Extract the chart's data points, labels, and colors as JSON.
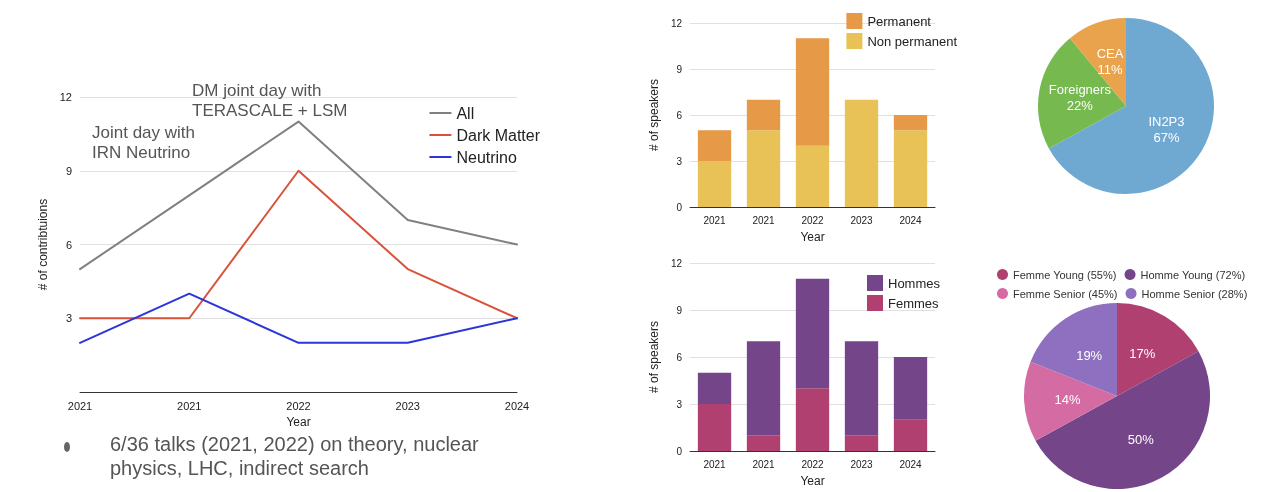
{
  "chart_data": [
    {
      "type": "line",
      "xlabel": "Year",
      "ylabel": "# of contribtuions",
      "categories": [
        "2021",
        "2021",
        "2022",
        "2023",
        "2024"
      ],
      "series": [
        {
          "name": "All",
          "color": "#808080",
          "values": [
            5,
            8,
            11,
            7,
            6
          ]
        },
        {
          "name": "Dark Matter",
          "color": "#d9533a",
          "values": [
            3,
            3,
            9,
            5,
            3
          ]
        },
        {
          "name": "Neutrino",
          "color": "#2b35d9",
          "values": [
            2,
            4,
            2,
            2,
            3
          ]
        }
      ],
      "ylim": [
        0,
        12
      ],
      "yticks": [
        3,
        6,
        9,
        12
      ],
      "grid": "y",
      "legend": "top right",
      "marker": "none",
      "line_style": "solid",
      "annotations": [
        "DM joint day with TERASCALE + LSM",
        "Joint day with IRN Neutrino",
        "6/36 talks (2021, 2022) on theory, nuclear physics, LHC, indirect search"
      ]
    },
    {
      "type": "bar",
      "stacked": true,
      "xlabel": "Year",
      "ylabel": "# of speakers",
      "categories": [
        "2021",
        "2021",
        "2022",
        "2023",
        "2024"
      ],
      "series": [
        {
          "name": "Non permanent",
          "color": "#e8c256",
          "values": [
            3,
            5,
            4,
            7,
            5
          ]
        },
        {
          "name": "Permanent",
          "color": "#e69a48",
          "values": [
            2,
            2,
            7,
            0,
            1
          ]
        }
      ],
      "ylim": [
        0,
        12
      ],
      "yticks": [
        0,
        3,
        6,
        9,
        12
      ],
      "grid": "y",
      "legend": "top right"
    },
    {
      "type": "pie",
      "categories": [
        "IN2P3",
        "Foreigners",
        "CEA"
      ],
      "values": [
        67,
        22,
        11
      ],
      "colors": [
        "#6fa9d2",
        "#76b94f",
        "#e9a34d"
      ],
      "value_labels": [
        "67%",
        "22%",
        "11%"
      ],
      "legend": false
    },
    {
      "type": "bar",
      "stacked": true,
      "xlabel": "Year",
      "ylabel": "# of speakers",
      "categories": [
        "2021",
        "2021",
        "2022",
        "2023",
        "2024"
      ],
      "series": [
        {
          "name": "Femmes",
          "color": "#b0406f",
          "values": [
            3,
            1,
            4,
            1,
            2
          ]
        },
        {
          "name": "Hommes",
          "color": "#744689",
          "values": [
            2,
            6,
            7,
            6,
            4
          ]
        }
      ],
      "ylim": [
        0,
        12
      ],
      "yticks": [
        0,
        3,
        6,
        9,
        12
      ],
      "grid": "y",
      "legend": "top right"
    },
    {
      "type": "pie",
      "categories": [
        "Femme Young (55%)",
        "Homme Young (72%)",
        "Femme Senior (45%)",
        "Homme Senior (28%)"
      ],
      "values": [
        17,
        50,
        14,
        19
      ],
      "colors": [
        "#b04070",
        "#744689",
        "#d46ca3",
        "#8f70c0"
      ],
      "value_labels": [
        "17%",
        "50%",
        "14%",
        "19%"
      ],
      "legend": "top"
    }
  ]
}
